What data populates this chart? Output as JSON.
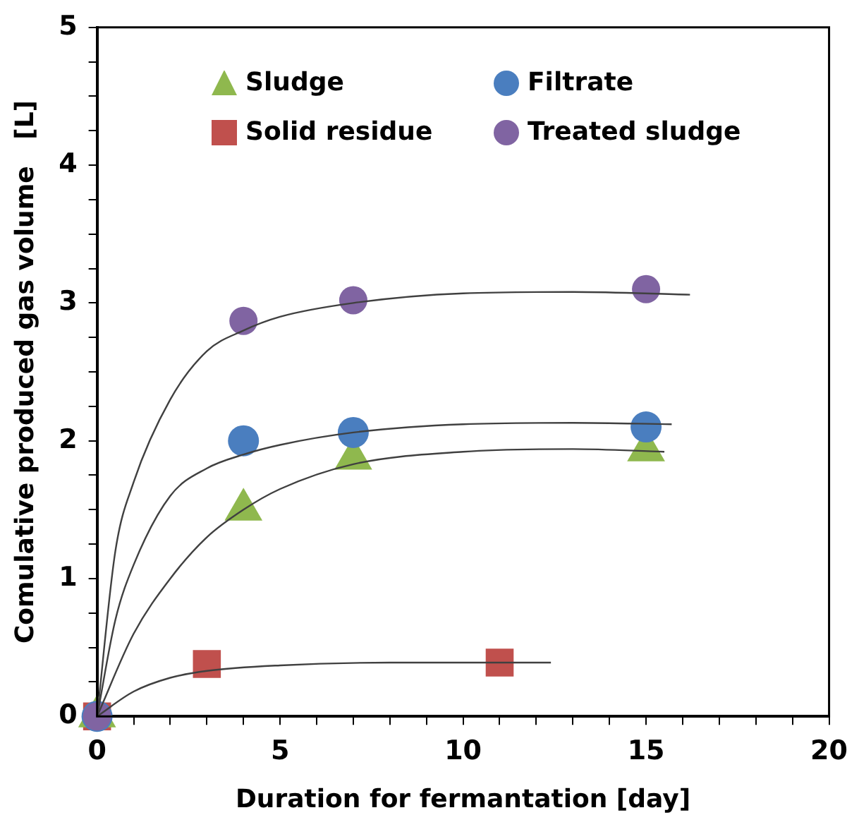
{
  "chart_data": {
    "type": "scatter",
    "xlabel": "Duration for fermantation [day]",
    "ylabel": "Comulative produced gas volume   [L]",
    "xlim": [
      0,
      20
    ],
    "xticks": [
      0,
      {
        "value": 1,
        "label": null
      },
      {
        "value": 2,
        "label": null
      },
      {
        "value": 3,
        "label": null
      },
      {
        "value": 4,
        "label": null
      },
      5,
      {
        "value": 6,
        "label": null
      },
      {
        "value": 7,
        "label": null
      },
      {
        "value": 8,
        "label": null
      },
      {
        "value": 9,
        "label": null
      },
      10,
      {
        "value": 11,
        "label": null
      },
      {
        "value": 12,
        "label": null
      },
      {
        "value": 13,
        "label": null
      },
      {
        "value": 14,
        "label": null
      },
      15,
      {
        "value": 16,
        "label": null
      },
      {
        "value": 17,
        "label": null
      },
      {
        "value": 18,
        "label": null
      },
      {
        "value": 19,
        "label": null
      },
      20
    ],
    "ylim": [
      0,
      5
    ],
    "yticks": [
      0,
      {
        "value": 0.25,
        "label": null
      },
      {
        "value": 0.5,
        "label": null
      },
      {
        "value": 0.75,
        "label": null
      },
      1,
      {
        "value": 1.25,
        "label": null
      },
      {
        "value": 1.5,
        "label": null
      },
      {
        "value": 1.75,
        "label": null
      },
      2,
      {
        "value": 2.25,
        "label": null
      },
      {
        "value": 2.5,
        "label": null
      },
      {
        "value": 2.75,
        "label": null
      },
      3,
      {
        "value": 3.25,
        "label": null
      },
      {
        "value": 3.5,
        "label": null
      },
      {
        "value": 3.75,
        "label": null
      },
      4,
      {
        "value": 4.25,
        "label": null
      },
      {
        "value": 4.5,
        "label": null
      },
      {
        "value": 4.75,
        "label": null
      },
      5
    ],
    "legend": "top",
    "grid": false,
    "series": [
      {
        "name": "Sludge",
        "color": "#8fb84e",
        "marker": "triangle",
        "x": [
          0,
          4,
          7,
          15
        ],
        "values": [
          0,
          1.5,
          1.87,
          1.93
        ]
      },
      {
        "name": "Filtrate",
        "color": "#4a7ebf",
        "marker": "circle",
        "x": [
          0,
          4,
          7,
          15
        ],
        "values": [
          0,
          2.0,
          2.06,
          2.1
        ]
      },
      {
        "name": "Solid residue",
        "color": "#c0504d",
        "marker": "square",
        "x": [
          0,
          3,
          11
        ],
        "values": [
          0,
          0.38,
          0.39
        ]
      },
      {
        "name": "Treated sludge",
        "color": "#8064a2",
        "marker": "circle",
        "x": [
          0,
          4,
          7,
          15
        ],
        "values": [
          0,
          2.87,
          3.02,
          3.1
        ]
      },
      {
        "type": "line",
        "color": "#404040",
        "marker": "none",
        "x": [
          0,
          0.5,
          1,
          2,
          3,
          4,
          5,
          7,
          10,
          13,
          16.2
        ],
        "values": [
          0,
          1.2,
          1.7,
          2.3,
          2.65,
          2.8,
          2.9,
          3.0,
          3.07,
          3.08,
          3.06
        ]
      },
      {
        "type": "line",
        "color": "#404040",
        "marker": "none",
        "x": [
          0,
          0.5,
          1,
          2,
          3,
          4,
          5,
          7,
          10,
          13,
          15.7
        ],
        "values": [
          0,
          0.7,
          1.1,
          1.6,
          1.8,
          1.9,
          1.97,
          2.06,
          2.12,
          2.13,
          2.12
        ]
      },
      {
        "type": "line",
        "color": "#404040",
        "marker": "none",
        "x": [
          0,
          1,
          2,
          3,
          4,
          5,
          7,
          10,
          13,
          15.5
        ],
        "values": [
          0,
          0.6,
          1.0,
          1.3,
          1.5,
          1.65,
          1.83,
          1.92,
          1.94,
          1.92
        ]
      },
      {
        "type": "line",
        "color": "#404040",
        "marker": "none",
        "x": [
          0,
          1,
          2,
          3,
          5,
          8,
          12.4
        ],
        "values": [
          0,
          0.18,
          0.28,
          0.33,
          0.37,
          0.39,
          0.39
        ]
      }
    ]
  }
}
